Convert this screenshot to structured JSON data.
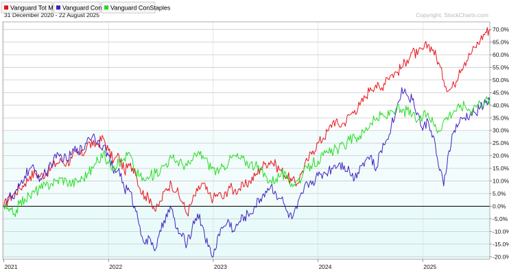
{
  "chart_data": {
    "type": "line",
    "subtitle": "31 December 2020 - 22 August 2025",
    "copyright": "Copyright, StockCharts.com",
    "ylim": [
      -21,
      73
    ],
    "y_ticks": [
      70,
      65,
      60,
      55,
      50,
      45,
      40,
      35,
      30,
      25,
      20,
      15,
      10,
      5,
      0,
      -5,
      -10,
      -15,
      -20
    ],
    "y_tick_labels": [
      "70.0%",
      "65.0%",
      "60.0%",
      "55.0%",
      "50.0%",
      "45.0%",
      "40.0%",
      "35.0%",
      "30.0%",
      "25.0%",
      "20.0%",
      "15.0%",
      "10.0%",
      "5.0%",
      "0.0%",
      "-5.0%",
      "-10.0%",
      "-15.0%",
      "-20.0%"
    ],
    "xlim": [
      2020.99,
      2025.64
    ],
    "x_ticks": [
      2021,
      2022,
      2023,
      2024,
      2025
    ],
    "x_tick_labels": [
      "2021",
      "2022",
      "2023",
      "2024",
      "2025"
    ],
    "grid": true,
    "legend_position": "top-left",
    "series": [
      {
        "name": "Vanguard Tot Market",
        "color": "#e8141b",
        "x": [
          2021.0,
          2021.05,
          2021.1,
          2021.15,
          2021.2,
          2021.25,
          2021.3,
          2021.35,
          2021.4,
          2021.45,
          2021.5,
          2021.55,
          2021.6,
          2021.65,
          2021.7,
          2021.75,
          2021.8,
          2021.85,
          2021.9,
          2021.95,
          2022.0,
          2022.05,
          2022.1,
          2022.15,
          2022.2,
          2022.25,
          2022.3,
          2022.35,
          2022.4,
          2022.45,
          2022.5,
          2022.55,
          2022.6,
          2022.65,
          2022.7,
          2022.75,
          2022.8,
          2022.85,
          2022.9,
          2022.95,
          2023.0,
          2023.05,
          2023.1,
          2023.15,
          2023.2,
          2023.25,
          2023.3,
          2023.35,
          2023.4,
          2023.45,
          2023.5,
          2023.55,
          2023.6,
          2023.65,
          2023.7,
          2023.75,
          2023.8,
          2023.85,
          2023.9,
          2023.95,
          2024.0,
          2024.05,
          2024.1,
          2024.15,
          2024.2,
          2024.25,
          2024.3,
          2024.35,
          2024.4,
          2024.45,
          2024.5,
          2024.55,
          2024.6,
          2024.65,
          2024.7,
          2024.75,
          2024.8,
          2024.85,
          2024.9,
          2024.95,
          2025.0,
          2025.05,
          2025.1,
          2025.15,
          2025.2,
          2025.25,
          2025.3,
          2025.35,
          2025.4,
          2025.45,
          2025.5,
          2025.55,
          2025.6,
          2025.64
        ],
        "values": [
          0,
          3,
          5,
          7,
          9,
          12,
          13,
          12,
          13,
          15,
          17,
          18,
          17,
          19,
          21,
          20,
          25,
          24,
          25,
          27,
          22,
          18,
          20,
          14,
          16,
          15,
          7,
          4,
          3,
          -2,
          2,
          7,
          9,
          6,
          2,
          -3,
          2,
          6,
          9,
          5,
          3,
          5,
          3,
          8,
          6,
          7,
          8,
          10,
          12,
          15,
          17,
          18,
          16,
          14,
          12,
          10,
          9,
          14,
          18,
          22,
          25,
          27,
          30,
          34,
          32,
          33,
          36,
          38,
          40,
          43,
          47,
          48,
          46,
          51,
          52,
          53,
          55,
          58,
          61,
          60,
          62,
          64,
          62,
          57,
          50,
          46,
          48,
          54,
          57,
          60,
          63,
          66,
          69,
          70
        ]
      },
      {
        "name": "Vanguard ConDisc",
        "color": "#3d22c0",
        "x": [
          2021.0,
          2021.05,
          2021.1,
          2021.15,
          2021.2,
          2021.25,
          2021.3,
          2021.35,
          2021.4,
          2021.45,
          2021.5,
          2021.55,
          2021.6,
          2021.65,
          2021.7,
          2021.75,
          2021.8,
          2021.85,
          2021.9,
          2021.95,
          2022.0,
          2022.05,
          2022.1,
          2022.15,
          2022.2,
          2022.25,
          2022.3,
          2022.35,
          2022.4,
          2022.45,
          2022.5,
          2022.55,
          2022.6,
          2022.65,
          2022.7,
          2022.75,
          2022.8,
          2022.85,
          2022.9,
          2022.95,
          2023.0,
          2023.05,
          2023.1,
          2023.15,
          2023.2,
          2023.25,
          2023.3,
          2023.35,
          2023.4,
          2023.45,
          2023.5,
          2023.55,
          2023.6,
          2023.65,
          2023.7,
          2023.75,
          2023.8,
          2023.85,
          2023.9,
          2023.95,
          2024.0,
          2024.05,
          2024.1,
          2024.15,
          2024.2,
          2024.25,
          2024.3,
          2024.35,
          2024.4,
          2024.45,
          2024.5,
          2024.55,
          2024.6,
          2024.65,
          2024.7,
          2024.75,
          2024.8,
          2024.85,
          2024.9,
          2024.95,
          2025.0,
          2025.05,
          2025.1,
          2025.15,
          2025.2,
          2025.25,
          2025.3,
          2025.35,
          2025.4,
          2025.45,
          2025.5,
          2025.55,
          2025.6,
          2025.64
        ],
        "values": [
          0,
          4,
          3,
          8,
          12,
          15,
          14,
          11,
          13,
          17,
          19,
          20,
          18,
          21,
          23,
          22,
          27,
          28,
          26,
          24,
          20,
          13,
          15,
          7,
          6,
          0,
          -8,
          -15,
          -13,
          -17,
          -10,
          -3,
          -1,
          -9,
          -12,
          -15,
          -8,
          -3,
          -8,
          -16,
          -20,
          -11,
          -8,
          -6,
          -10,
          -6,
          -4,
          -3,
          0,
          3,
          6,
          8,
          5,
          3,
          -2,
          -5,
          -1,
          5,
          9,
          10,
          12,
          13,
          14,
          16,
          17,
          16,
          14,
          11,
          16,
          18,
          20,
          14,
          22,
          26,
          32,
          38,
          47,
          44,
          42,
          37,
          30,
          34,
          28,
          16,
          8,
          22,
          30,
          33,
          35,
          36,
          37,
          39,
          41,
          42
        ]
      },
      {
        "name": "Vanguard ConStaples",
        "color": "#22dd22",
        "x": [
          2021.0,
          2021.05,
          2021.1,
          2021.15,
          2021.2,
          2021.25,
          2021.3,
          2021.35,
          2021.4,
          2021.45,
          2021.5,
          2021.55,
          2021.6,
          2021.65,
          2021.7,
          2021.75,
          2021.8,
          2021.85,
          2021.9,
          2021.95,
          2022.0,
          2022.05,
          2022.1,
          2022.15,
          2022.2,
          2022.25,
          2022.3,
          2022.35,
          2022.4,
          2022.45,
          2022.5,
          2022.55,
          2022.6,
          2022.65,
          2022.7,
          2022.75,
          2022.8,
          2022.85,
          2022.9,
          2022.95,
          2023.0,
          2023.05,
          2023.1,
          2023.15,
          2023.2,
          2023.25,
          2023.3,
          2023.35,
          2023.4,
          2023.45,
          2023.5,
          2023.55,
          2023.6,
          2023.65,
          2023.7,
          2023.75,
          2023.8,
          2023.85,
          2023.9,
          2023.95,
          2024.0,
          2024.05,
          2024.1,
          2024.15,
          2024.2,
          2024.25,
          2024.3,
          2024.35,
          2024.4,
          2024.45,
          2024.5,
          2024.55,
          2024.6,
          2024.65,
          2024.7,
          2024.75,
          2024.8,
          2024.85,
          2024.9,
          2024.95,
          2025.0,
          2025.05,
          2025.1,
          2025.15,
          2025.2,
          2025.25,
          2025.3,
          2025.35,
          2025.4,
          2025.45,
          2025.5,
          2025.55,
          2025.6,
          2025.64
        ],
        "values": [
          0,
          -2,
          -3,
          1,
          3,
          4,
          6,
          7,
          8,
          9,
          10,
          11,
          10,
          9,
          10,
          11,
          13,
          15,
          18,
          21,
          17,
          16,
          17,
          19,
          21,
          14,
          12,
          10,
          12,
          13,
          15,
          17,
          19,
          18,
          17,
          16,
          18,
          21,
          20,
          17,
          15,
          13,
          16,
          18,
          20,
          19,
          18,
          17,
          16,
          14,
          12,
          10,
          11,
          13,
          11,
          9,
          10,
          12,
          15,
          17,
          18,
          20,
          21,
          22,
          23,
          24,
          26,
          27,
          28,
          30,
          33,
          34,
          36,
          35,
          38,
          39,
          37,
          38,
          36,
          34,
          35,
          37,
          33,
          30,
          34,
          36,
          38,
          39,
          40,
          38,
          40,
          41,
          42,
          42
        ]
      }
    ]
  }
}
